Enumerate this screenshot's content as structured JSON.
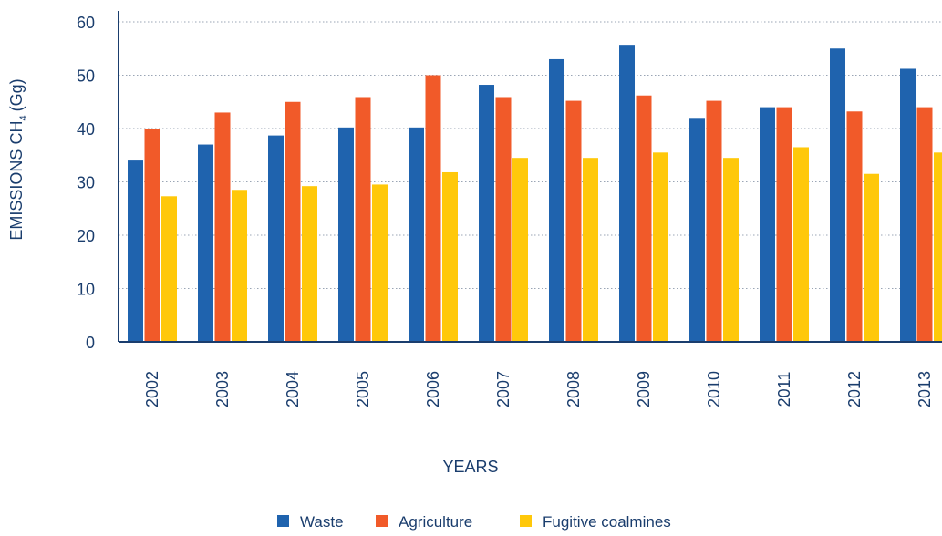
{
  "chart_data": {
    "type": "bar",
    "categories": [
      "2002",
      "2003",
      "2004",
      "2005",
      "2006",
      "2007",
      "2008",
      "2009",
      "2010",
      "2011",
      "2012",
      "2013"
    ],
    "series": [
      {
        "name": "Waste",
        "color": "#1f63ae",
        "values": [
          34,
          37,
          38.7,
          40.2,
          40.2,
          48.2,
          53,
          55.7,
          42,
          44,
          55,
          51.2
        ]
      },
      {
        "name": "Agriculture",
        "color": "#f15a29",
        "values": [
          40,
          43,
          45,
          45.9,
          50,
          45.9,
          45.2,
          46.2,
          45.2,
          44,
          43.2,
          44
        ]
      },
      {
        "name": "Fugitive coalmines",
        "color": "#ffc80a",
        "values": [
          27.3,
          28.5,
          29.2,
          29.5,
          31.8,
          34.5,
          34.5,
          35.5,
          34.5,
          36.5,
          31.5,
          35.5
        ]
      }
    ],
    "yticks": [
      "0",
      "10",
      "20",
      "30",
      "40",
      "50",
      "60"
    ],
    "ylim": [
      0,
      60
    ],
    "xlabel": "YEARS",
    "ylabel": "EMISSIONS CH",
    "ylabel_sub": "4",
    "ylabel_unit": "(Gg)",
    "grid": "horizontal-dotted",
    "legend_position": "bottom-center"
  }
}
